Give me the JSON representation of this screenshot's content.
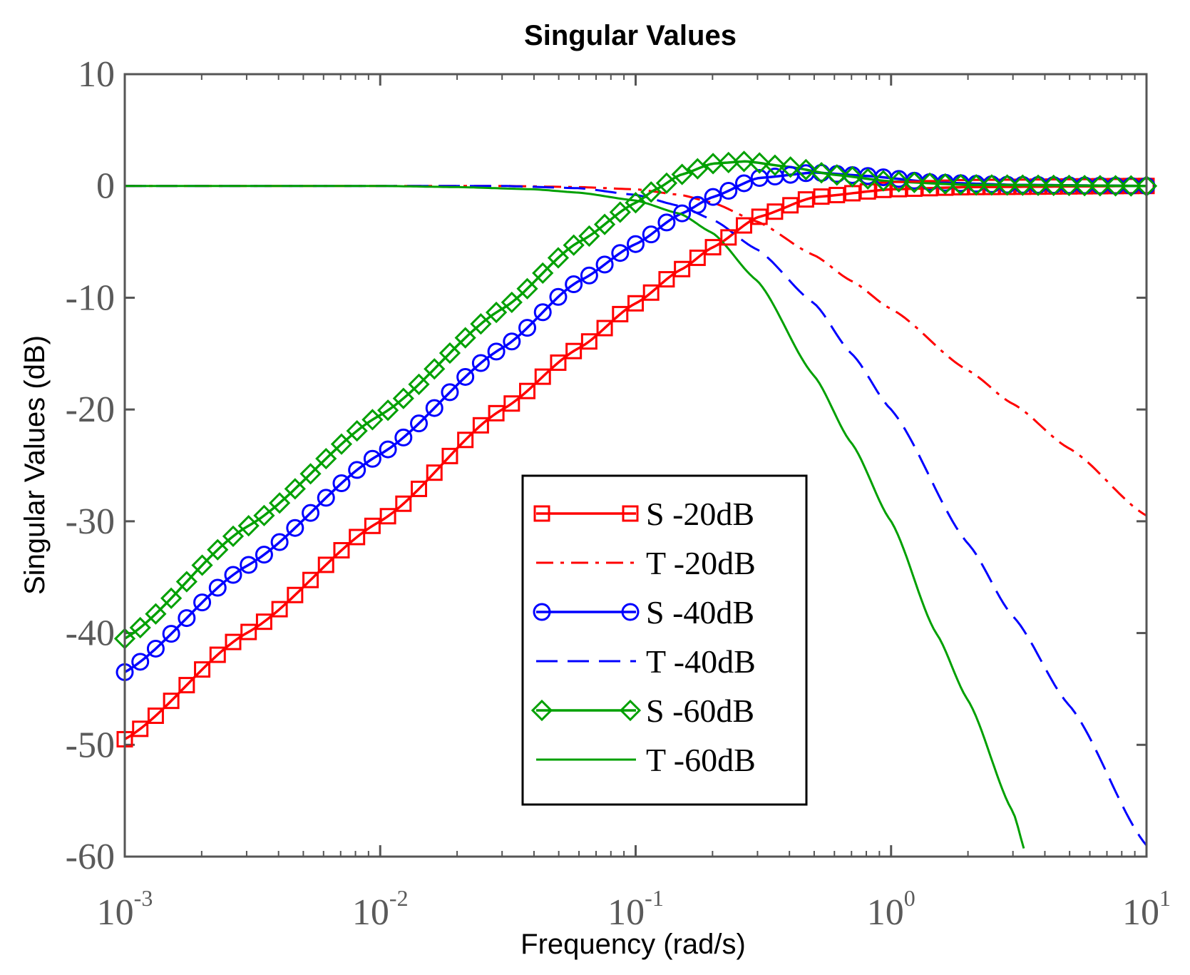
{
  "chart_data": {
    "type": "line",
    "title": "Singular Values",
    "xlabel": "Frequency (rad/s)",
    "ylabel": "Singular Values (dB)",
    "xscale": "log",
    "xlim": [
      0.001,
      10
    ],
    "ylim": [
      -60,
      10
    ],
    "yticks": [
      "10",
      "0",
      "-10",
      "-20",
      "-30",
      "-40",
      "-50",
      "-60"
    ],
    "ytick_values": [
      10,
      0,
      -10,
      -20,
      -30,
      -40,
      -50,
      -60
    ],
    "xticks": [
      {
        "base": "10",
        "exp": "-3",
        "value": 0.001
      },
      {
        "base": "10",
        "exp": "-2",
        "value": 0.01
      },
      {
        "base": "10",
        "exp": "-1",
        "value": 0.1
      },
      {
        "base": "10",
        "exp": "0",
        "value": 1
      },
      {
        "base": "10",
        "exp": "1",
        "value": 10
      }
    ],
    "legend_position": "center-right",
    "series": [
      {
        "name": "S -20dB",
        "color": "#ff0000",
        "style": "solid",
        "marker": "square",
        "x": [
          0.001,
          0.003,
          0.01,
          0.03,
          0.06,
          0.1,
          0.15,
          0.2,
          0.3,
          0.5,
          1,
          2,
          10
        ],
        "y": [
          -49.5,
          -40,
          -30,
          -20,
          -14.5,
          -10.5,
          -7.5,
          -5.5,
          -2.8,
          -1.0,
          -0.3,
          -0.1,
          0
        ]
      },
      {
        "name": "T -20dB",
        "color": "#ff0000",
        "style": "dashdot",
        "marker": "none",
        "x": [
          0.001,
          0.03,
          0.06,
          0.1,
          0.15,
          0.2,
          0.3,
          0.5,
          0.7,
          1,
          2,
          3,
          5,
          10
        ],
        "y": [
          0,
          0,
          -0.1,
          -0.3,
          -0.8,
          -1.5,
          -3.2,
          -6.2,
          -8.5,
          -11,
          -16.5,
          -19.5,
          -23.5,
          -29.5
        ]
      },
      {
        "name": "S -40dB",
        "color": "#0000ff",
        "style": "solid",
        "marker": "circle",
        "x": [
          0.001,
          0.003,
          0.01,
          0.03,
          0.06,
          0.1,
          0.15,
          0.2,
          0.3,
          0.5,
          0.8,
          1.5,
          3,
          10
        ],
        "y": [
          -43.5,
          -34,
          -24,
          -14.5,
          -8.5,
          -5.2,
          -2.5,
          -1.0,
          0.7,
          1.2,
          0.9,
          0.3,
          0.1,
          0
        ]
      },
      {
        "name": "T -40dB",
        "color": "#0000ff",
        "style": "dashed",
        "marker": "none",
        "x": [
          0.001,
          0.03,
          0.06,
          0.1,
          0.15,
          0.2,
          0.3,
          0.5,
          0.7,
          1,
          2,
          3,
          5,
          10
        ],
        "y": [
          0,
          0,
          -0.2,
          -0.8,
          -1.8,
          -3.0,
          -5.7,
          -10.5,
          -15,
          -20,
          -32,
          -38.5,
          -46.5,
          -59
        ]
      },
      {
        "name": "S -60dB",
        "color": "#00a000",
        "style": "solid",
        "marker": "diamond",
        "x": [
          0.001,
          0.003,
          0.01,
          0.03,
          0.06,
          0.1,
          0.12,
          0.15,
          0.2,
          0.27,
          0.4,
          0.6,
          1,
          2,
          10
        ],
        "y": [
          -40.5,
          -30.5,
          -20.5,
          -11,
          -5,
          -1.5,
          -0.3,
          1.0,
          2.0,
          2.2,
          1.7,
          1.0,
          0.4,
          0.1,
          0
        ]
      },
      {
        "name": "T -60dB",
        "color": "#00a000",
        "style": "solid-thin",
        "marker": "none",
        "x": [
          0.001,
          0.01,
          0.02,
          0.04,
          0.06,
          0.1,
          0.15,
          0.2,
          0.3,
          0.5,
          0.7,
          1,
          1.5,
          2,
          3,
          3.4
        ],
        "y": [
          0,
          0,
          -0.1,
          -0.3,
          -0.6,
          -1.3,
          -2.5,
          -4.2,
          -8.5,
          -17,
          -23,
          -30,
          -40,
          -46,
          -56,
          -60
        ]
      }
    ]
  }
}
